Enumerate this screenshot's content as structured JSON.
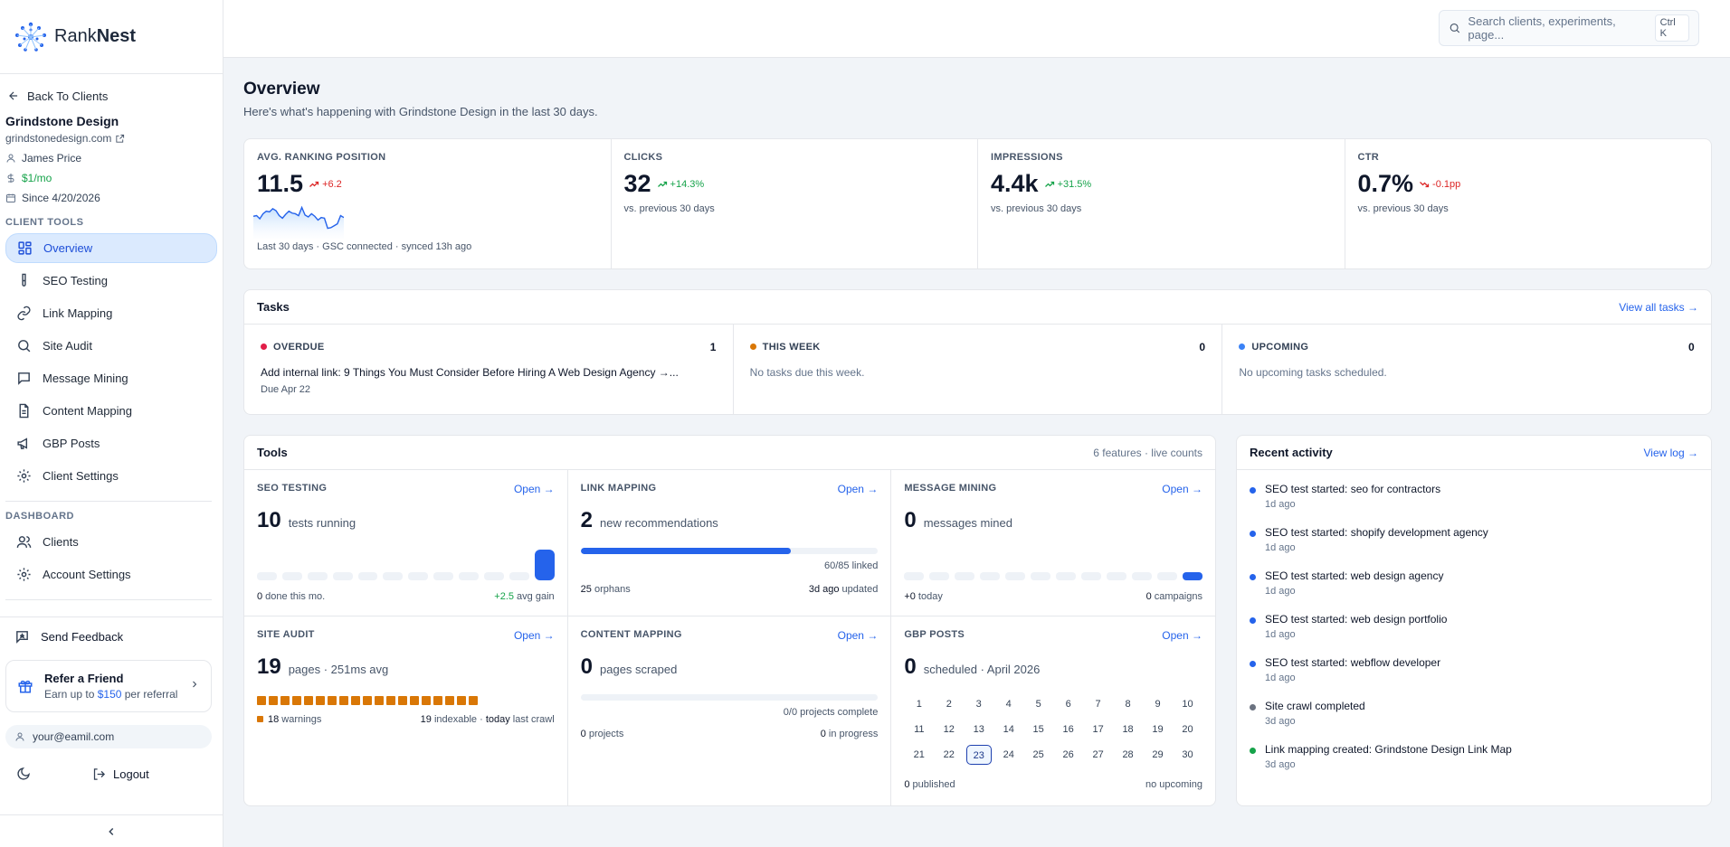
{
  "brand": {
    "name_light": "Rank",
    "name_bold": "Nest"
  },
  "sidebar": {
    "back_label": "Back To Clients",
    "client": {
      "name": "Grindstone Design",
      "url": "grindstonedesign.com",
      "owner": "James Price",
      "price": "$1/mo",
      "since": "Since 4/20/2026"
    },
    "client_tools_label": "CLIENT TOOLS",
    "client_tools": [
      {
        "label": "Overview",
        "icon": "grid-icon",
        "active": true
      },
      {
        "label": "SEO Testing",
        "icon": "test-tube-icon"
      },
      {
        "label": "Link Mapping",
        "icon": "link-icon"
      },
      {
        "label": "Site Audit",
        "icon": "search-icon"
      },
      {
        "label": "Message Mining",
        "icon": "message-icon"
      },
      {
        "label": "Content Mapping",
        "icon": "document-icon"
      },
      {
        "label": "GBP Posts",
        "icon": "megaphone-icon"
      },
      {
        "label": "Client Settings",
        "icon": "gear-icon"
      }
    ],
    "dashboard_label": "DASHBOARD",
    "dashboard": [
      {
        "label": "Clients",
        "icon": "users-icon"
      },
      {
        "label": "Account Settings",
        "icon": "gear-icon"
      }
    ],
    "feedback_label": "Send Feedback",
    "refer": {
      "title": "Refer a Friend",
      "sub_prefix": "Earn up to ",
      "amount": "$150",
      "sub_suffix": " per referral"
    },
    "email": "your@eamil.com",
    "logout_label": "Logout"
  },
  "search": {
    "placeholder": "Search clients, experiments, page...",
    "shortcut": "Ctrl K"
  },
  "page": {
    "title": "Overview",
    "subtitle": "Here's what's happening with Grindstone Design in the last 30 days."
  },
  "metrics": [
    {
      "label": "AVG. RANKING POSITION",
      "value": "11.5",
      "delta": "+6.2",
      "direction": "down",
      "foot": "Last 30 days · GSC connected · synced 13h ago"
    },
    {
      "label": "CLICKS",
      "value": "32",
      "delta": "+14.3%",
      "direction": "up",
      "foot": "vs. previous 30 days"
    },
    {
      "label": "IMPRESSIONS",
      "value": "4.4k",
      "delta": "+31.5%",
      "direction": "up",
      "foot": "vs. previous 30 days"
    },
    {
      "label": "CTR",
      "value": "0.7%",
      "delta": "-0.1pp",
      "direction": "down",
      "foot": "vs. previous 30 days"
    }
  ],
  "ranking_trend": [
    12.0,
    11.9,
    12.4,
    11.6,
    11.2,
    11.3,
    10.8,
    11.1,
    11.9,
    12.3,
    11.7,
    11.2,
    11.5,
    11.6,
    11.9,
    10.6,
    11.8,
    12.1,
    11.6,
    12.0,
    12.6,
    12.2,
    12.3,
    13.9,
    13.8,
    13.5,
    13.2,
    11.9,
    12.2
  ],
  "tasks": {
    "title": "Tasks",
    "view_all": "View all tasks →",
    "columns": [
      {
        "label": "OVERDUE",
        "count": "1",
        "color": "#e11d48",
        "item_title": "Add internal link: 9 Things You Must Consider Before Hiring A Web Design Agency →...",
        "item_due": "Due Apr 22"
      },
      {
        "label": "THIS WEEK",
        "count": "0",
        "color": "#d97706",
        "empty": "No tasks due this week."
      },
      {
        "label": "UPCOMING",
        "count": "0",
        "color": "#3b82f6",
        "empty": "No upcoming tasks scheduled."
      }
    ]
  },
  "tools": {
    "title": "Tools",
    "meta": "6 features · live counts",
    "open_label": "Open →",
    "seo": {
      "label": "SEO TESTING",
      "value": "10",
      "unit": "tests running",
      "foot_left_num": "0",
      "foot_left": " done this mo.",
      "foot_right_num": "+2.5",
      "foot_right": " avg gain"
    },
    "link": {
      "label": "LINK MAPPING",
      "value": "2",
      "unit": "new recommendations",
      "progress": 0.706,
      "progress_note": "60/85 linked",
      "foot_left_num": "25",
      "foot_left": " orphans",
      "foot_right_num": "3d ago",
      "foot_right": " updated"
    },
    "message": {
      "label": "MESSAGE MINING",
      "value": "0",
      "unit": "messages mined",
      "foot_left_num": "+0",
      "foot_left": " today",
      "foot_right_num": "0",
      "foot_right": " campaigns"
    },
    "audit": {
      "label": "SITE AUDIT",
      "value": "19",
      "unit": "pages · 251ms avg",
      "warnings_num": "18",
      "warnings": " warnings",
      "foot_right_num": "19",
      "foot_right_mid": " indexable · ",
      "foot_right_num2": "today",
      "foot_right": " last crawl"
    },
    "content": {
      "label": "CONTENT MAPPING",
      "value": "0",
      "unit": "pages scraped",
      "progress": 0,
      "progress_note": "0/0 projects complete",
      "foot_left_num": "0",
      "foot_left": " projects",
      "foot_right_num": "0",
      "foot_right": " in progress"
    },
    "gbp": {
      "label": "GBP POSTS",
      "value": "0",
      "unit": "scheduled · April 2026",
      "days": [
        "1",
        "2",
        "3",
        "4",
        "5",
        "6",
        "7",
        "8",
        "9",
        "10",
        "11",
        "12",
        "13",
        "14",
        "15",
        "16",
        "17",
        "18",
        "19",
        "20",
        "21",
        "22",
        "23",
        "24",
        "25",
        "26",
        "27",
        "28",
        "29",
        "30"
      ],
      "today": "23",
      "foot_left_num": "0",
      "foot_left": " published",
      "foot_right": "no upcoming"
    }
  },
  "activity": {
    "title": "Recent activity",
    "view_log": "View log →",
    "items": [
      {
        "title": "SEO test started: seo for contractors",
        "time": "1d ago",
        "color": "#2563eb"
      },
      {
        "title": "SEO test started: shopify development agency",
        "time": "1d ago",
        "color": "#2563eb"
      },
      {
        "title": "SEO test started: web design agency",
        "time": "1d ago",
        "color": "#2563eb"
      },
      {
        "title": "SEO test started: web design portfolio",
        "time": "1d ago",
        "color": "#2563eb"
      },
      {
        "title": "SEO test started: webflow developer",
        "time": "1d ago",
        "color": "#2563eb"
      },
      {
        "title": "Site crawl completed",
        "time": "3d ago",
        "color": "#6b7280"
      },
      {
        "title": "Link mapping created: Grindstone Design Link Map",
        "time": "3d ago",
        "color": "#16a34a"
      }
    ]
  }
}
